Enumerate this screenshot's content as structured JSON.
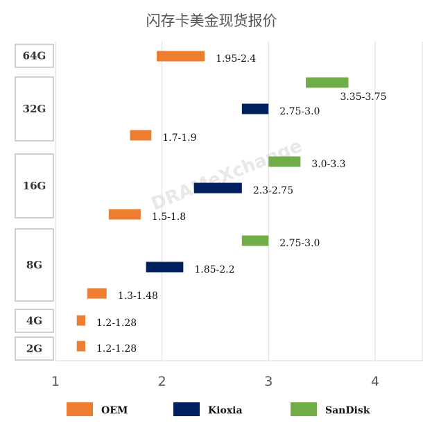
{
  "chart_data": {
    "type": "bar",
    "orientation": "horizontal-range",
    "title": "闪存卡美金现货报价",
    "categories": [
      "64G",
      "32G",
      "16G",
      "8G",
      "4G",
      "2G"
    ],
    "xlim": [
      1,
      4.45
    ],
    "xticks": [
      1,
      2,
      3,
      4
    ],
    "grid": true,
    "legend_position": "bottom",
    "series": [
      {
        "name": "OEM",
        "color": "#ED7D31"
      },
      {
        "name": "Kioxia",
        "color": "#002060"
      },
      {
        "name": "SanDisk",
        "color": "#70AD47"
      }
    ],
    "bars": [
      {
        "category": "64G",
        "series": "OEM",
        "low": 1.95,
        "high": 2.4,
        "label": "1.95-2.4"
      },
      {
        "category": "32G",
        "series": "SanDisk",
        "low": 3.35,
        "high": 3.75,
        "label": "3.35-3.75"
      },
      {
        "category": "32G",
        "series": "Kioxia",
        "low": 2.75,
        "high": 3.0,
        "label": "2.75-3.0"
      },
      {
        "category": "32G",
        "series": "OEM",
        "low": 1.7,
        "high": 1.9,
        "label": "1.7-1.9"
      },
      {
        "category": "16G",
        "series": "SanDisk",
        "low": 3.0,
        "high": 3.3,
        "label": "3.0-3.3"
      },
      {
        "category": "16G",
        "series": "Kioxia",
        "low": 2.3,
        "high": 2.75,
        "label": "2.3-2.75"
      },
      {
        "category": "16G",
        "series": "OEM",
        "low": 1.5,
        "high": 1.8,
        "label": "1.5-1.8"
      },
      {
        "category": "8G",
        "series": "SanDisk",
        "low": 2.75,
        "high": 3.0,
        "label": "2.75-3.0"
      },
      {
        "category": "8G",
        "series": "Kioxia",
        "low": 1.85,
        "high": 2.2,
        "label": "1.85-2.2"
      },
      {
        "category": "8G",
        "series": "OEM",
        "low": 1.3,
        "high": 1.48,
        "label": "1.3-1.48"
      },
      {
        "category": "4G",
        "series": "OEM",
        "low": 1.2,
        "high": 1.28,
        "label": "1.2-1.28"
      },
      {
        "category": "2G",
        "series": "OEM",
        "low": 1.2,
        "high": 1.28,
        "label": "1.2-1.28"
      }
    ]
  },
  "watermark": "DRAMeXchange"
}
